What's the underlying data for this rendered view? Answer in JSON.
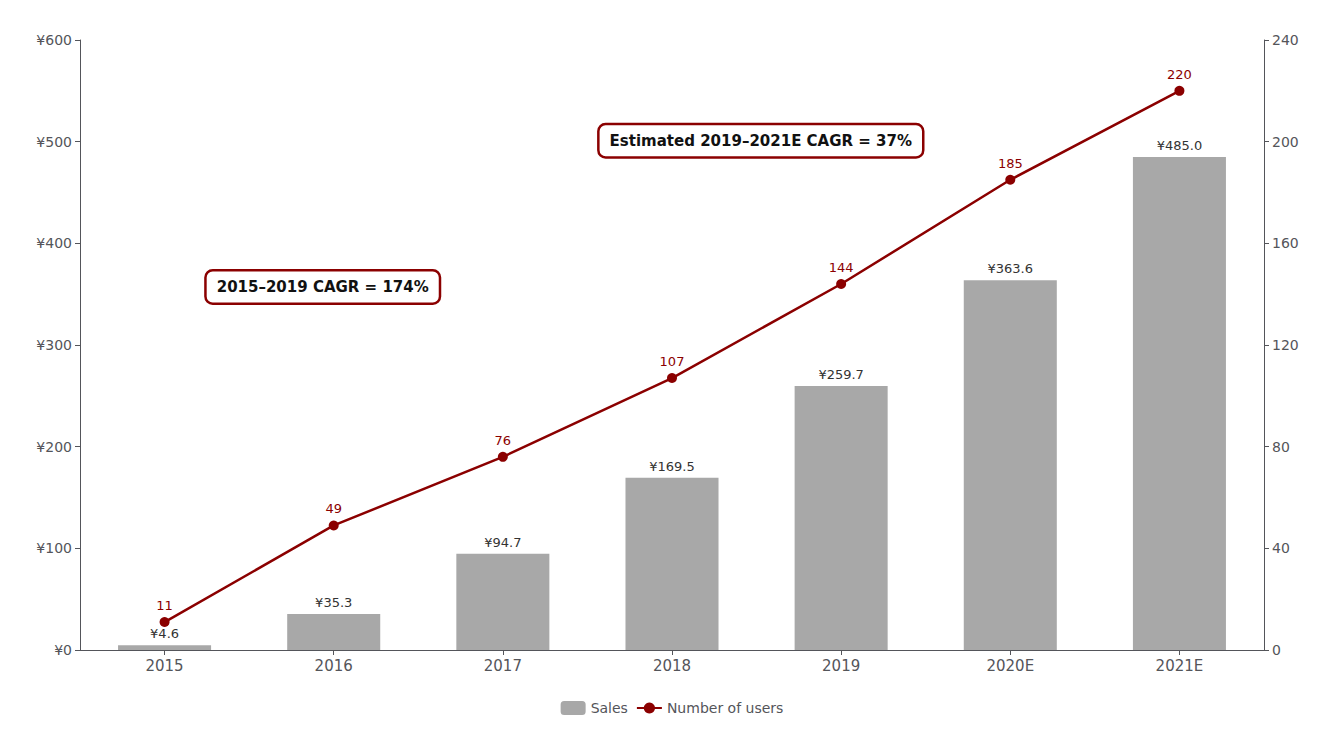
{
  "chart_data": {
    "type": "bar",
    "categories": [
      "2015",
      "2016",
      "2017",
      "2018",
      "2019",
      "2020E",
      "2021E"
    ],
    "series": [
      {
        "name": "Sales",
        "type": "bar",
        "color": "#a8a8a8",
        "values": [
          4.6,
          35.3,
          94.7,
          169.5,
          259.7,
          363.6,
          485.0
        ],
        "value_labels": [
          "¥4.6",
          "¥35.3",
          "¥94.7",
          "¥169.5",
          "¥259.7",
          "¥363.6",
          "¥485.0"
        ]
      },
      {
        "name": "Number of users",
        "type": "line",
        "color": "#8b0000",
        "axis": "y2",
        "marker": "circle",
        "values": [
          11,
          49,
          76,
          107,
          144,
          185,
          220
        ]
      }
    ],
    "ylim": [
      0,
      600
    ],
    "yticks": [
      {
        "value": 0,
        "label": "¥0"
      },
      {
        "value": 100,
        "label": "¥100"
      },
      {
        "value": 200,
        "label": "¥200"
      },
      {
        "value": 300,
        "label": "¥300"
      },
      {
        "value": 400,
        "label": "¥400"
      },
      {
        "value": 500,
        "label": "¥500"
      },
      {
        "value": 600,
        "label": "¥600"
      }
    ],
    "y2lim": [
      0,
      240
    ],
    "y2ticks": [
      0,
      40,
      80,
      120,
      160,
      200,
      240
    ],
    "annotations": [
      "2015–2019 CAGR = 174%",
      "Estimated 2019–2021E CAGR = 37%"
    ],
    "data_labels": true,
    "grid": false,
    "legend": "bottom"
  }
}
